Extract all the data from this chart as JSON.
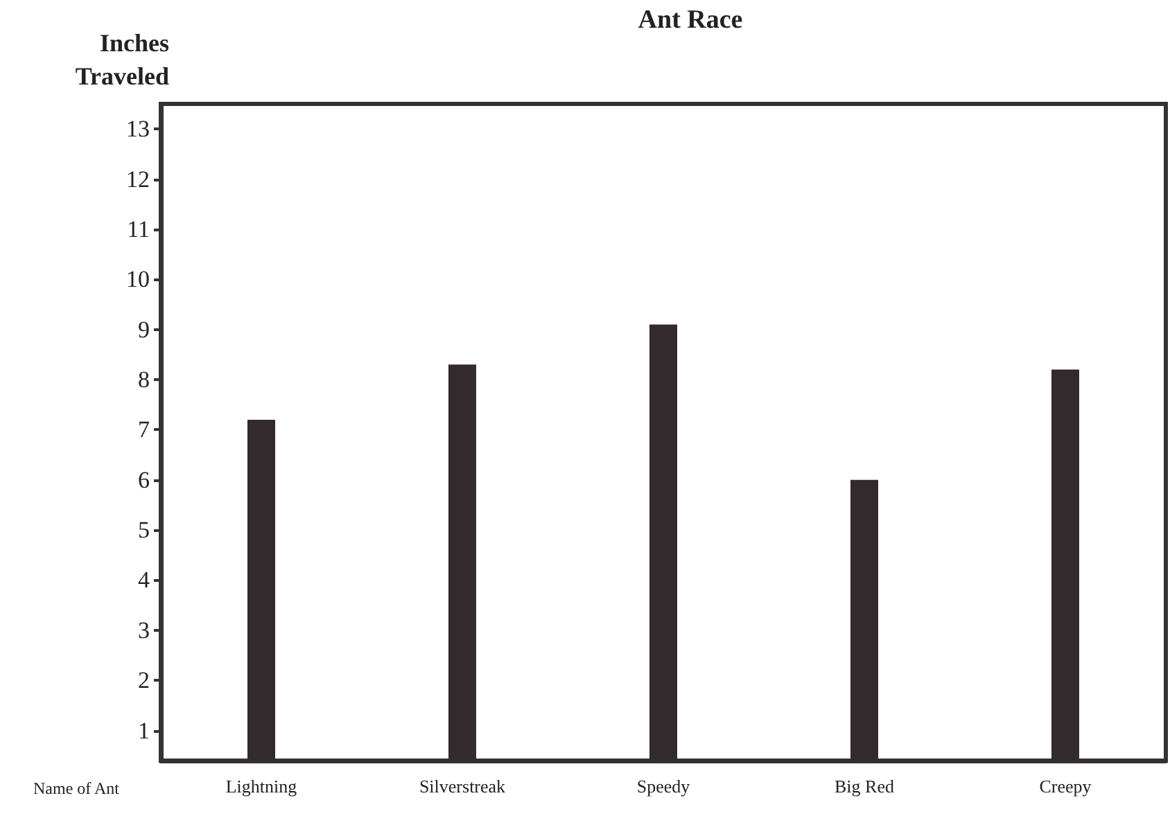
{
  "chart_data": {
    "type": "bar",
    "title": "Ant Race",
    "xlabel": "Name of Ant",
    "ylabel": "Inches\nTraveled",
    "categories": [
      "Lightning",
      "Silverstreak",
      "Speedy",
      "Big Red",
      "Creepy"
    ],
    "values": [
      7.2,
      8.3,
      9.1,
      6,
      8.2
    ],
    "color": "#332a2d",
    "ylim": [
      0.4,
      13.5
    ],
    "yticks": [
      1,
      2,
      3,
      4,
      5,
      6,
      7,
      8,
      9,
      10,
      11,
      12,
      13
    ],
    "grid": false
  }
}
